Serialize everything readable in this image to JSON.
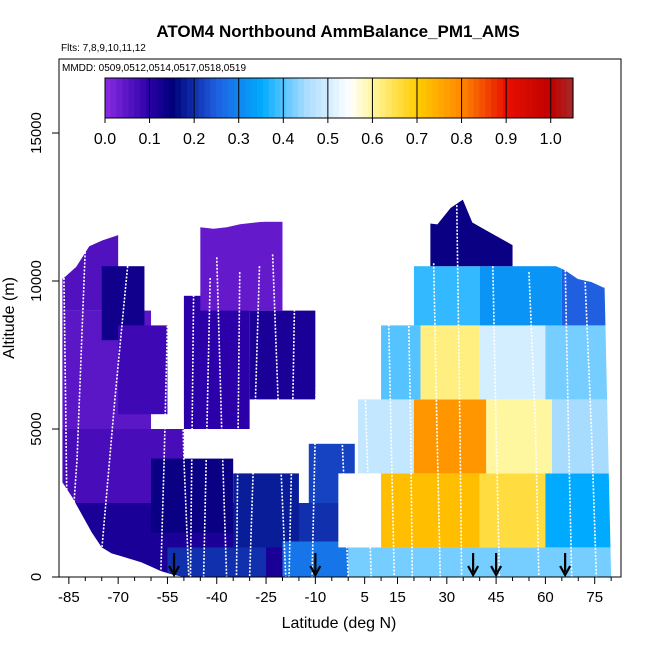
{
  "chart_data": {
    "type": "heatmap",
    "title": "ATOM4 Northbound AmmBalance_PM1_AMS",
    "subtitle_flights": "Flts: 7,8,9,10,11,12",
    "subtitle_dates": "MMDD: 0509,0512,0514,0517,0518,0519",
    "xlabel": "Latitude (deg N)",
    "ylabel": "Altitude (m)",
    "xlim": [
      -88,
      83
    ],
    "ylim": [
      0,
      17500
    ],
    "x_ticks": [
      -85,
      -70,
      -55,
      -40,
      -25,
      -10,
      5,
      15,
      30,
      45,
      60,
      75
    ],
    "x_ticks_text": [
      "-85",
      "-70",
      "-55",
      "-40",
      "-25",
      "-10",
      "5",
      "15",
      "30",
      "45",
      "60",
      "75"
    ],
    "x_minor_ticks": [
      -80,
      -75,
      -65,
      -60,
      -50,
      -45,
      -35,
      -30,
      -20,
      -15,
      -5,
      0,
      10,
      20,
      25,
      35,
      40,
      50,
      55,
      65,
      70,
      80
    ],
    "y_ticks": [
      0,
      5000,
      10000,
      15000
    ],
    "y_ticks_text": [
      "0",
      "5000",
      "10000",
      "15000"
    ],
    "colorbar": {
      "range": [
        0,
        1.05
      ],
      "ticks": [
        0.0,
        0.1,
        0.2,
        0.3,
        0.4,
        0.5,
        0.6,
        0.7,
        0.8,
        0.9,
        1.0
      ],
      "ticks_text": [
        "0.0",
        "0.1",
        "0.2",
        "0.3",
        "0.4",
        "0.5",
        "0.6",
        "0.7",
        "0.8",
        "0.9",
        "1.0"
      ],
      "stops": [
        {
          "v": 0.0,
          "color": "#8a2be2"
        },
        {
          "v": 0.1,
          "color": "#2b00a8"
        },
        {
          "v": 0.15,
          "color": "#00007a"
        },
        {
          "v": 0.25,
          "color": "#1f5fe0"
        },
        {
          "v": 0.35,
          "color": "#00aaff"
        },
        {
          "v": 0.45,
          "color": "#a8dcff"
        },
        {
          "v": 0.55,
          "color": "#ffffff"
        },
        {
          "v": 0.6,
          "color": "#fff6a0"
        },
        {
          "v": 0.7,
          "color": "#ffcc00"
        },
        {
          "v": 0.8,
          "color": "#ff8800"
        },
        {
          "v": 0.9,
          "color": "#e81000"
        },
        {
          "v": 1.0,
          "color": "#c00000"
        },
        {
          "v": 1.05,
          "color": "#a52a2a"
        }
      ]
    },
    "ceiling_profile": [
      [
        -87,
        10100
      ],
      [
        -83,
        10500
      ],
      [
        -79,
        11200
      ],
      [
        -75,
        11400
      ],
      [
        -71,
        11550
      ],
      [
        -67,
        11700
      ],
      [
        -64,
        11750
      ],
      [
        -60,
        11900
      ],
      [
        -57,
        12000
      ],
      [
        -53,
        12000
      ],
      [
        -49,
        11950
      ],
      [
        -45,
        11850
      ],
      [
        -41,
        11800
      ],
      [
        -37,
        11850
      ],
      [
        -33,
        11950
      ],
      [
        -29,
        12000
      ],
      [
        -25,
        12050
      ],
      [
        -21,
        12100
      ],
      [
        -17,
        12050
      ],
      [
        -13,
        12000
      ],
      [
        -9,
        11950
      ],
      [
        -5,
        11950
      ],
      [
        -1,
        11950
      ],
      [
        3,
        12000
      ],
      [
        7,
        12050
      ],
      [
        11,
        12100
      ],
      [
        15,
        12100
      ],
      [
        19,
        12050
      ],
      [
        23,
        12000
      ],
      [
        27,
        11950
      ],
      [
        31,
        12500
      ],
      [
        35,
        12800
      ],
      [
        38,
        12000
      ],
      [
        42,
        11750
      ],
      [
        46,
        11500
      ],
      [
        50,
        11250
      ],
      [
        54,
        11000
      ],
      [
        58,
        10850
      ],
      [
        62,
        10600
      ],
      [
        66,
        10400
      ],
      [
        70,
        10100
      ],
      [
        74,
        10000
      ],
      [
        78,
        9800
      ]
    ],
    "floor_profile": [
      [
        -87,
        3200
      ],
      [
        -84,
        2700
      ],
      [
        -81,
        2100
      ],
      [
        -78,
        1500
      ],
      [
        -75,
        1000
      ],
      [
        -72,
        800
      ],
      [
        -69,
        700
      ],
      [
        -66,
        600
      ],
      [
        -63,
        500
      ],
      [
        -60,
        350
      ],
      [
        -57,
        200
      ],
      [
        -54,
        100
      ],
      [
        -50,
        0
      ],
      [
        80,
        0
      ]
    ],
    "cells": [
      {
        "lat": -87,
        "lat2": 0,
        "alt": 0,
        "alt2": 2500,
        "v": 0.12
      },
      {
        "lat": -87,
        "lat2": -50,
        "alt": 2500,
        "alt2": 5000,
        "v": 0.07
      },
      {
        "lat": -87,
        "lat2": -60,
        "alt": 5000,
        "alt2": 9000,
        "v": 0.05
      },
      {
        "lat": -87,
        "lat2": -70,
        "alt": 9000,
        "alt2": 12500,
        "v": 0.06
      },
      {
        "lat": -75,
        "lat2": -62,
        "alt": 8000,
        "alt2": 10500,
        "v": 0.13
      },
      {
        "lat": -70,
        "lat2": -55,
        "alt": 5500,
        "alt2": 8500,
        "v": 0.08
      },
      {
        "lat": -50,
        "lat2": -30,
        "alt": 5000,
        "alt2": 9500,
        "v": 0.1
      },
      {
        "lat": -30,
        "lat2": -10,
        "alt": 6000,
        "alt2": 9000,
        "v": 0.12
      },
      {
        "lat": -60,
        "lat2": -35,
        "alt": 1500,
        "alt2": 4000,
        "v": 0.14
      },
      {
        "lat": -35,
        "lat2": -15,
        "alt": 1000,
        "alt2": 3500,
        "v": 0.18
      },
      {
        "lat": -45,
        "lat2": -20,
        "alt": 9000,
        "alt2": 12000,
        "v": 0.04
      },
      {
        "lat": -55,
        "lat2": -25,
        "alt": 0,
        "alt2": 1000,
        "v": 0.2
      },
      {
        "lat": -20,
        "lat2": 0,
        "alt": 0,
        "alt2": 1200,
        "v": 0.28
      },
      {
        "lat": -15,
        "lat2": 0,
        "alt": 1200,
        "alt2": 2500,
        "v": 0.2
      },
      {
        "lat": -12,
        "lat2": 2,
        "alt": 2500,
        "alt2": 4500,
        "v": 0.22
      },
      {
        "lat": 0,
        "lat2": 82,
        "alt": 0,
        "alt2": 1000,
        "v": 0.42
      },
      {
        "lat": -3,
        "lat2": 10,
        "alt": 1000,
        "alt2": 3500,
        "v": 0.55
      },
      {
        "lat": 10,
        "lat2": 40,
        "alt": 1000,
        "alt2": 3500,
        "v": 0.72
      },
      {
        "lat": 40,
        "lat2": 60,
        "alt": 1000,
        "alt2": 3500,
        "v": 0.66
      },
      {
        "lat": 60,
        "lat2": 82,
        "alt": 1000,
        "alt2": 3500,
        "v": 0.35
      },
      {
        "lat": 3,
        "lat2": 20,
        "alt": 3500,
        "alt2": 6000,
        "v": 0.48
      },
      {
        "lat": 20,
        "lat2": 42,
        "alt": 3500,
        "alt2": 6000,
        "v": 0.78
      },
      {
        "lat": 42,
        "lat2": 62,
        "alt": 3500,
        "alt2": 6000,
        "v": 0.6
      },
      {
        "lat": 62,
        "lat2": 82,
        "alt": 3500,
        "alt2": 6000,
        "v": 0.45
      },
      {
        "lat": 10,
        "lat2": 22,
        "alt": 6000,
        "alt2": 8500,
        "v": 0.4
      },
      {
        "lat": 22,
        "lat2": 40,
        "alt": 6000,
        "alt2": 8500,
        "v": 0.62
      },
      {
        "lat": 40,
        "lat2": 60,
        "alt": 6000,
        "alt2": 8500,
        "v": 0.5
      },
      {
        "lat": 60,
        "lat2": 82,
        "alt": 6000,
        "alt2": 8500,
        "v": 0.42
      },
      {
        "lat": 20,
        "lat2": 40,
        "alt": 8500,
        "alt2": 10500,
        "v": 0.38
      },
      {
        "lat": 40,
        "lat2": 65,
        "alt": 8500,
        "alt2": 10500,
        "v": 0.32
      },
      {
        "lat": 65,
        "lat2": 82,
        "alt": 8500,
        "alt2": 10500,
        "v": 0.25
      },
      {
        "lat": 25,
        "lat2": 50,
        "alt": 10500,
        "alt2": 12800,
        "v": 0.14
      }
    ],
    "flight_tracks": [
      [
        [
          -86.5,
          10100
        ],
        [
          -86,
          6000
        ],
        [
          -85.5,
          1500
        ]
      ],
      [
        [
          -80,
          11100
        ],
        [
          -82.5,
          4000
        ],
        [
          -84,
          1600
        ]
      ],
      [
        [
          -66,
          11800
        ],
        [
          -71,
          6000
        ],
        [
          -75,
          900
        ]
      ],
      [
        [
          -55,
          8600
        ],
        [
          -56,
          4000
        ],
        [
          -57,
          200
        ]
      ],
      [
        [
          -51,
          8400
        ],
        [
          -50,
          4000
        ],
        [
          -48.5,
          0
        ]
      ],
      [
        [
          -47,
          10000
        ],
        [
          -47.5,
          5000
        ],
        [
          -48,
          0
        ]
      ],
      [
        [
          -42,
          10100
        ],
        [
          -43,
          5000
        ],
        [
          -44,
          0
        ]
      ],
      [
        [
          -40,
          10800
        ],
        [
          -38.5,
          5000
        ],
        [
          -37,
          0
        ]
      ],
      [
        [
          -33,
          10300
        ],
        [
          -33.5,
          5000
        ],
        [
          -34,
          0
        ]
      ],
      [
        [
          -27,
          10500
        ],
        [
          -28.5,
          5000
        ],
        [
          -30,
          0
        ]
      ],
      [
        [
          -23,
          10900
        ],
        [
          -21,
          5000
        ],
        [
          -19,
          0
        ]
      ],
      [
        [
          -16,
          11400
        ],
        [
          -17,
          5000
        ],
        [
          -18,
          0
        ]
      ],
      [
        [
          -9,
          10200
        ],
        [
          -10,
          5000
        ],
        [
          -11,
          0
        ]
      ],
      [
        [
          -4,
          10600
        ],
        [
          -2,
          5000
        ],
        [
          0,
          0
        ]
      ],
      [
        [
          4,
          10700
        ],
        [
          5.5,
          5000
        ],
        [
          7,
          0
        ]
      ],
      [
        [
          12,
          10300
        ],
        [
          13,
          5000
        ],
        [
          14,
          0
        ]
      ],
      [
        [
          18,
          11200
        ],
        [
          19,
          5000
        ],
        [
          19.5,
          0
        ]
      ],
      [
        [
          26,
          10600
        ],
        [
          27,
          5000
        ],
        [
          28,
          0
        ]
      ],
      [
        [
          33,
          12800
        ],
        [
          34,
          5000
        ],
        [
          34.5,
          0
        ]
      ],
      [
        [
          44,
          10500
        ],
        [
          45,
          5000
        ],
        [
          46,
          0
        ]
      ],
      [
        [
          55,
          10300
        ],
        [
          57,
          5000
        ],
        [
          58,
          0
        ]
      ],
      [
        [
          66,
          10600
        ],
        [
          67,
          5000
        ],
        [
          68,
          0
        ]
      ],
      [
        [
          72,
          10200
        ],
        [
          74,
          5000
        ],
        [
          75.5,
          0
        ]
      ]
    ],
    "arrows_lat": [
      -53,
      -10,
      38,
      45,
      66
    ]
  }
}
